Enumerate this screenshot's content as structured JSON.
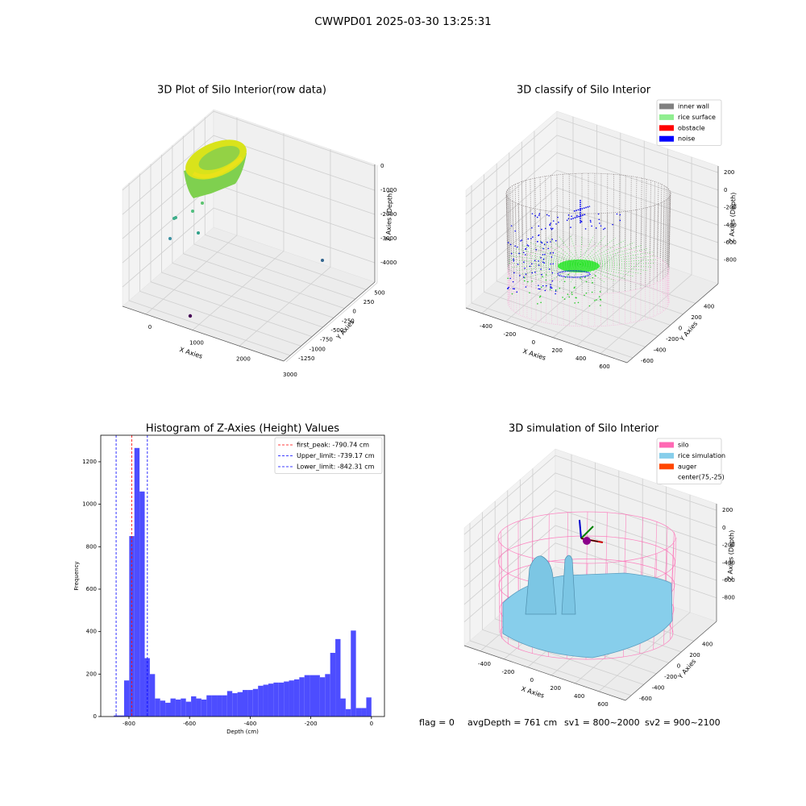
{
  "title": "CWWPD01 2025-03-30 13:25:31",
  "chart_data": [
    {
      "type": "scatter3d",
      "title": "3D Plot of Silo Interior(row data)",
      "xlabel": "X Axies",
      "ylabel": "Y Axies",
      "zlabel": "Z Axies (Depth)",
      "xlim": [
        -500,
        2950
      ],
      "ylim": [
        -1400,
        700
      ],
      "zlim": [
        -4800,
        70
      ],
      "xticks": [
        0,
        1000,
        2000,
        3000
      ],
      "yticks": [
        -1250,
        -1000,
        -750,
        -500,
        -250,
        0,
        250,
        500
      ],
      "zticks": [
        0,
        -1000,
        -2000,
        -3000,
        -4000
      ],
      "grid": true
    },
    {
      "type": "scatter3d",
      "title": "3D classify of Silo Interior",
      "xlabel": "X Axies",
      "ylabel": "Y Axies",
      "zlabel": "Z Axies (Depth)",
      "xlim": [
        -536,
        824
      ],
      "ylim": [
        -690,
        760
      ],
      "zlim": [
        -1070,
        275
      ],
      "xticks": [
        -400,
        -200,
        0,
        200,
        400,
        600
      ],
      "yticks": [
        -600,
        -400,
        -200,
        0,
        200,
        400
      ],
      "zticks": [
        200,
        0,
        -200,
        -400,
        -600,
        -800
      ],
      "grid": true,
      "legend": "upper right",
      "legend_entries": [
        {
          "name": "inner wall",
          "color": "#808080"
        },
        {
          "name": "rice surface",
          "color": "#90ee90"
        },
        {
          "name": "obstacle",
          "color": "#ff0000"
        },
        {
          "name": "noise",
          "color": "#0000ff"
        }
      ]
    },
    {
      "type": "histogram",
      "title": "Histogram of Z-Axies (Height) Values",
      "xlabel": "Depth (cm)",
      "ylabel": "Frequency",
      "bins": [
        -850,
        -833,
        -816,
        -799,
        -782,
        -765,
        -748,
        -731,
        -714,
        -697,
        -680,
        -663,
        -646,
        -629,
        -612,
        -595,
        -578,
        -561,
        -544,
        -527,
        -510,
        -493,
        -476,
        -459,
        -442,
        -425,
        -408,
        -391,
        -374,
        -357,
        -340,
        -323,
        -306,
        -289,
        -272,
        -255,
        -238,
        -221,
        -204,
        -187,
        -170,
        -153,
        -136,
        -119,
        -102,
        -85,
        -68,
        -51,
        -34,
        -17,
        0
      ],
      "values": [
        5,
        5,
        170,
        850,
        1265,
        1060,
        275,
        200,
        85,
        75,
        65,
        85,
        80,
        85,
        70,
        95,
        85,
        80,
        100,
        100,
        100,
        100,
        120,
        110,
        115,
        125,
        125,
        130,
        145,
        150,
        155,
        160,
        160,
        165,
        170,
        175,
        185,
        195,
        195,
        195,
        185,
        200,
        300,
        365,
        85,
        35,
        405,
        40,
        40,
        90
      ],
      "color": "#4d4dff",
      "xlim": [
        -893,
        43
      ],
      "ylim": [
        0,
        1325
      ],
      "xticks": [
        -800,
        -600,
        -400,
        -200,
        0
      ],
      "yticks": [
        0,
        200,
        400,
        600,
        800,
        1000,
        1200
      ],
      "vlines": [
        {
          "name": "first_peak: -790.74 cm",
          "value": -790.74,
          "color": "#ff0000"
        },
        {
          "name": "Upper_limit: -739.17 cm",
          "value": -739.17,
          "color": "#0000ff"
        },
        {
          "name": "Lower_limit: -842.31 cm",
          "value": -842.31,
          "color": "#0000ff"
        }
      ],
      "legend": "upper right"
    },
    {
      "type": "surface3d",
      "title": "3D simulation of Silo Interior",
      "xlabel": "X Axies",
      "ylabel": "Y Axies",
      "zlabel": "Z Axies (Depth)",
      "xlim": [
        -536,
        824
      ],
      "ylim": [
        -690,
        760
      ],
      "zlim": [
        -1070,
        275
      ],
      "xticks": [
        -400,
        -200,
        0,
        200,
        400,
        600
      ],
      "yticks": [
        -600,
        -400,
        -200,
        0,
        200,
        400
      ],
      "zticks": [
        200,
        0,
        -200,
        -400,
        -600,
        -800
      ],
      "grid": true,
      "legend": "upper right",
      "legend_entries": [
        {
          "name": "silo",
          "color": "#ff69b4"
        },
        {
          "name": "rice simulation",
          "color": "#87ceeb"
        },
        {
          "name": "auger",
          "color": "#ff4500"
        },
        {
          "name": "center(75,-25)",
          "color": "#ffffff"
        }
      ]
    }
  ],
  "footer": [
    "flag = 0",
    "avgDepth = 761 cm",
    "sv1 = 800~2000",
    "sv2 = 900~2100"
  ]
}
